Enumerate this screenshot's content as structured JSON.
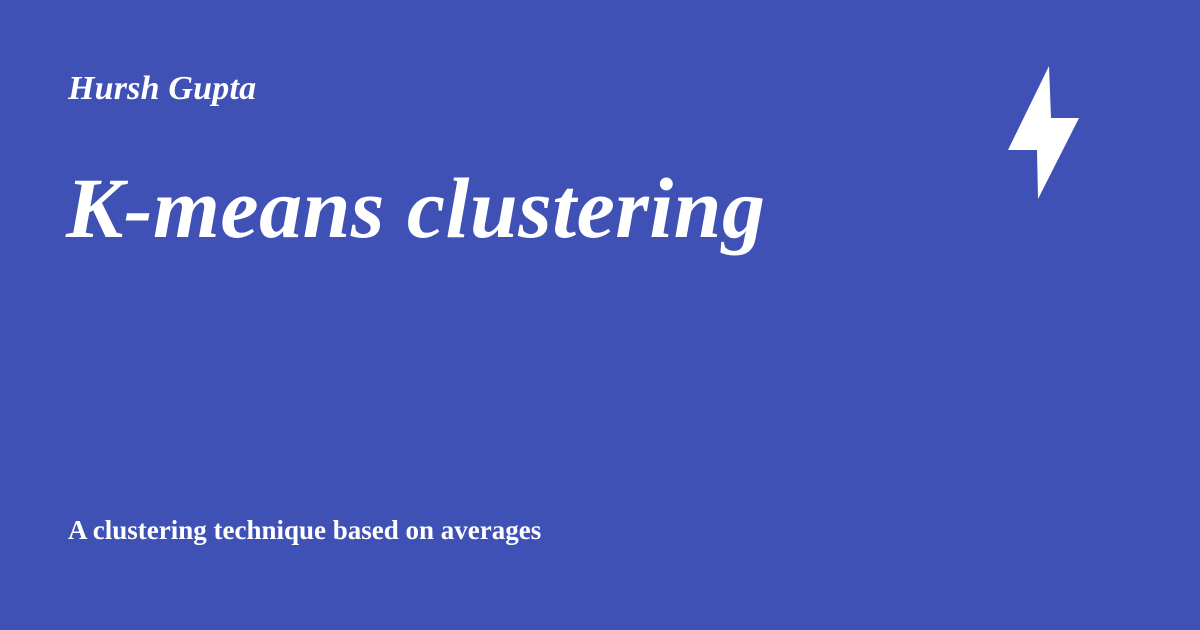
{
  "card": {
    "author": "Hursh Gupta",
    "title": "K-means clustering",
    "subtitle": "A clustering technique based on averages",
    "logo_icon": "lightning-bolt-icon",
    "colors": {
      "background": "#3f51b5",
      "text": "#ffffff"
    }
  }
}
